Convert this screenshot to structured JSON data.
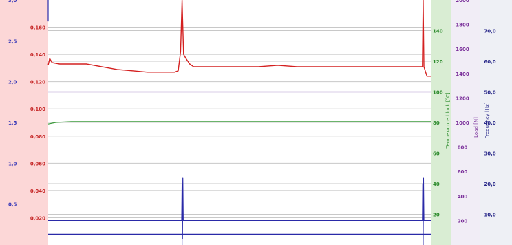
{
  "colors": {
    "friction": "#d42020",
    "temperature": "#3a9a3a",
    "load": "#6c3aa0",
    "frequency": "#2a2aa8",
    "marker": "#2a2aa8",
    "left_band": "#fcd7d7",
    "temp_band": "#d9edd3",
    "load_band": "#f1edf6",
    "freq_band": "#eef0f5",
    "grid": "#c8c8c8",
    "left_axis_text": "#3b3bb8",
    "friction_axis_text": "#c62828",
    "temp_axis_text": "#2e8b2e",
    "load_axis_text": "#7a2f9a",
    "freq_axis_text": "#2a2a8a"
  },
  "chart_data": {
    "type": "line",
    "title": "",
    "grid": true,
    "x_range": [
      0,
      100
    ],
    "axes": {
      "left_outer": {
        "range": [
          0,
          3.0
        ],
        "ticks": [
          "0,5",
          "1,0",
          "1,5",
          "2,0",
          "2,5",
          "3,0"
        ],
        "tick_values": [
          0.5,
          1.0,
          1.5,
          2.0,
          2.5,
          3.0
        ]
      },
      "friction": {
        "range": [
          0,
          0.18
        ],
        "ticks": [
          "0,020",
          "0,040",
          "0,060",
          "0,080",
          "0,100",
          "0,120",
          "0,140",
          "0,160"
        ],
        "tick_values": [
          0.02,
          0.04,
          0.06,
          0.08,
          0.1,
          0.12,
          0.14,
          0.16
        ]
      },
      "temperature": {
        "label": "Temperature block [°C]",
        "range": [
          0,
          160
        ],
        "ticks": [
          "20",
          "40",
          "60",
          "80",
          "100",
          "120",
          "140"
        ],
        "tick_values": [
          20,
          40,
          60,
          80,
          100,
          120,
          140
        ]
      },
      "load": {
        "label": "Load [N]",
        "range": [
          0,
          2000
        ],
        "ticks": [
          "200",
          "400",
          "600",
          "800",
          "1000",
          "1200",
          "1400",
          "1600",
          "1800",
          "2000"
        ],
        "tick_values": [
          200,
          400,
          600,
          800,
          1000,
          1200,
          1400,
          1600,
          1800,
          2000
        ]
      },
      "frequency": {
        "label": "Frequency [Hz]",
        "range": [
          0,
          80
        ],
        "ticks": [
          "10,0",
          "20,0",
          "30,0",
          "40,0",
          "50,0",
          "60,0",
          "70,0"
        ],
        "tick_values": [
          10,
          20,
          30,
          40,
          50,
          60,
          70
        ]
      }
    },
    "series": [
      {
        "axis": "friction",
        "x": [
          0,
          0.4,
          1,
          3,
          6,
          10,
          14,
          16,
          18,
          22,
          26,
          30,
          33,
          34,
          34.6,
          35,
          35.4,
          36,
          37,
          38,
          40,
          45,
          50,
          55,
          60,
          65,
          70,
          75,
          80,
          85,
          90,
          94,
          97,
          97.8,
          98,
          98.2,
          99,
          100
        ],
        "y": [
          0.132,
          0.137,
          0.134,
          0.133,
          0.133,
          0.133,
          0.131,
          0.13,
          0.129,
          0.128,
          0.127,
          0.127,
          0.127,
          0.128,
          0.142,
          0.18,
          0.14,
          0.137,
          0.133,
          0.131,
          0.131,
          0.131,
          0.131,
          0.131,
          0.132,
          0.131,
          0.131,
          0.131,
          0.131,
          0.131,
          0.131,
          0.131,
          0.131,
          0.131,
          0.18,
          0.131,
          0.124,
          0.124
        ]
      },
      {
        "axis": "temperature",
        "x": [
          0,
          2,
          6,
          12,
          20,
          40,
          60,
          80,
          100
        ],
        "y": [
          79,
          80,
          80.5,
          80.5,
          80.5,
          80.5,
          80.5,
          80.5,
          80.5
        ]
      },
      {
        "axis": "load",
        "x": [
          0,
          100
        ],
        "y": [
          1250,
          1250
        ]
      },
      {
        "axis": "frequency",
        "x": [
          0,
          34.9,
          35,
          35.1,
          35.2,
          35.3,
          97.8,
          97.9,
          98,
          98.1,
          98.2,
          100
        ],
        "y": [
          8,
          8,
          20,
          2,
          22,
          8,
          8,
          20,
          2,
          22,
          8,
          8
        ]
      },
      {
        "axis": "frequency",
        "x": [
          0,
          100
        ],
        "y": [
          3.5,
          3.5
        ]
      }
    ],
    "markers": [
      {
        "axis": "frequency",
        "x": 0,
        "y_range": [
          73,
          80
        ]
      },
      {
        "axis": "frequency",
        "x": 35,
        "y_range": [
          0,
          4
        ]
      },
      {
        "axis": "frequency",
        "x": 98,
        "y_range": [
          0,
          4
        ]
      }
    ]
  }
}
